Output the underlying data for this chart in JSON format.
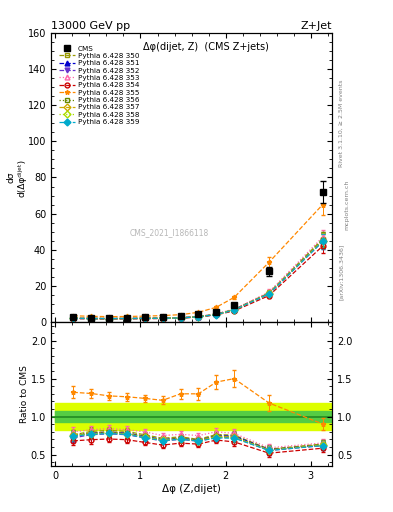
{
  "title_top": "13000 GeV pp",
  "title_right": "Z+Jet",
  "annotation": "Δφ(dijet, Z)  (CMS Z+jets)",
  "watermark": "CMS_2021_I1866118",
  "rivet_text": "Rivet 3.1.10, ≥ 2.5M events",
  "arxiv_text": "[arXiv:1306.3436]",
  "mcplots_text": "mcplots.cern.ch",
  "ylabel_ratio": "Ratio to CMS",
  "xlabel": "Δφ (Z,dijet)",
  "ylim_main": [
    0,
    160
  ],
  "ylim_ratio": [
    0.35,
    2.25
  ],
  "yticks_main": [
    0,
    20,
    40,
    60,
    80,
    100,
    120,
    140,
    160
  ],
  "yticks_ratio": [
    0.5,
    1.0,
    1.5,
    2.0
  ],
  "xlim": [
    -0.05,
    3.25
  ],
  "xticks": [
    0,
    1,
    2,
    3
  ],
  "cms_x": [
    0.21,
    0.42,
    0.63,
    0.84,
    1.05,
    1.26,
    1.47,
    1.68,
    1.89,
    2.1,
    2.51,
    3.14
  ],
  "cms_y": [
    2.5,
    2.3,
    2.2,
    2.3,
    2.5,
    2.8,
    3.0,
    4.0,
    5.5,
    9.0,
    28.0,
    72.0
  ],
  "cms_yerr": [
    0.3,
    0.2,
    0.2,
    0.2,
    0.2,
    0.2,
    0.25,
    0.35,
    0.5,
    0.8,
    2.5,
    6.0
  ],
  "series": [
    {
      "label": "Pythia 6.428 350",
      "color": "#999900",
      "marker": "s",
      "fillstyle": "none",
      "linestyle": "--",
      "x": [
        0.21,
        0.42,
        0.63,
        0.84,
        1.05,
        1.26,
        1.47,
        1.68,
        1.89,
        2.1,
        2.51,
        3.14
      ],
      "y": [
        1.9,
        1.85,
        1.8,
        1.85,
        1.9,
        2.0,
        2.2,
        2.8,
        4.2,
        6.8,
        16.0,
        46.0
      ],
      "yerr": [
        0.15,
        0.12,
        0.1,
        0.1,
        0.1,
        0.1,
        0.12,
        0.15,
        0.25,
        0.5,
        1.5,
        4.0
      ]
    },
    {
      "label": "Pythia 6.428 351",
      "color": "#0000cc",
      "marker": "^",
      "fillstyle": "full",
      "linestyle": "--",
      "x": [
        0.21,
        0.42,
        0.63,
        0.84,
        1.05,
        1.26,
        1.47,
        1.68,
        1.89,
        2.1,
        2.51,
        3.14
      ],
      "y": [
        1.85,
        1.8,
        1.75,
        1.8,
        1.85,
        1.95,
        2.15,
        2.75,
        4.1,
        6.7,
        15.8,
        45.0
      ],
      "yerr": [
        0.15,
        0.12,
        0.1,
        0.1,
        0.1,
        0.1,
        0.12,
        0.15,
        0.25,
        0.5,
        1.5,
        4.0
      ]
    },
    {
      "label": "Pythia 6.428 352",
      "color": "#6633cc",
      "marker": "v",
      "fillstyle": "full",
      "linestyle": "--",
      "x": [
        0.21,
        0.42,
        0.63,
        0.84,
        1.05,
        1.26,
        1.47,
        1.68,
        1.89,
        2.1,
        2.51,
        3.14
      ],
      "y": [
        1.8,
        1.75,
        1.7,
        1.75,
        1.8,
        1.9,
        2.1,
        2.7,
        4.0,
        6.5,
        15.5,
        44.5
      ],
      "yerr": [
        0.15,
        0.12,
        0.1,
        0.1,
        0.1,
        0.1,
        0.12,
        0.15,
        0.25,
        0.5,
        1.5,
        4.0
      ]
    },
    {
      "label": "Pythia 6.428 353",
      "color": "#ff66aa",
      "marker": "^",
      "fillstyle": "none",
      "linestyle": ":",
      "x": [
        0.21,
        0.42,
        0.63,
        0.84,
        1.05,
        1.26,
        1.47,
        1.68,
        1.89,
        2.1,
        2.51,
        3.14
      ],
      "y": [
        2.0,
        1.9,
        1.85,
        1.9,
        2.0,
        2.1,
        2.3,
        3.0,
        4.4,
        7.0,
        16.5,
        47.0
      ],
      "yerr": [
        0.15,
        0.12,
        0.1,
        0.1,
        0.1,
        0.1,
        0.12,
        0.15,
        0.25,
        0.5,
        1.5,
        4.0
      ]
    },
    {
      "label": "Pythia 6.428 354",
      "color": "#cc0000",
      "marker": "o",
      "fillstyle": "none",
      "linestyle": "--",
      "x": [
        0.21,
        0.42,
        0.63,
        0.84,
        1.05,
        1.26,
        1.47,
        1.68,
        1.89,
        2.1,
        2.51,
        3.14
      ],
      "y": [
        1.7,
        1.6,
        1.55,
        1.6,
        1.65,
        1.75,
        1.95,
        2.55,
        3.8,
        6.0,
        14.5,
        42.0
      ],
      "yerr": [
        0.15,
        0.12,
        0.1,
        0.1,
        0.1,
        0.1,
        0.12,
        0.15,
        0.25,
        0.5,
        1.5,
        4.0
      ]
    },
    {
      "label": "Pythia 6.428 355",
      "color": "#ff8800",
      "marker": "*",
      "fillstyle": "full",
      "linestyle": "--",
      "x": [
        0.21,
        0.42,
        0.63,
        0.84,
        1.05,
        1.26,
        1.47,
        1.68,
        1.89,
        2.1,
        2.51,
        3.14
      ],
      "y": [
        3.3,
        3.0,
        2.8,
        2.9,
        3.1,
        3.4,
        3.9,
        5.2,
        8.0,
        13.5,
        33.0,
        65.0
      ],
      "yerr": [
        0.2,
        0.15,
        0.12,
        0.12,
        0.12,
        0.15,
        0.2,
        0.3,
        0.5,
        1.0,
        3.0,
        6.0
      ]
    },
    {
      "label": "Pythia 6.428 356",
      "color": "#668800",
      "marker": "s",
      "fillstyle": "none",
      "linestyle": ":",
      "x": [
        0.21,
        0.42,
        0.63,
        0.84,
        1.05,
        1.26,
        1.47,
        1.68,
        1.89,
        2.1,
        2.51,
        3.14
      ],
      "y": [
        1.9,
        1.8,
        1.75,
        1.8,
        1.85,
        1.95,
        2.15,
        2.75,
        4.1,
        6.6,
        15.8,
        45.5
      ],
      "yerr": [
        0.15,
        0.12,
        0.1,
        0.1,
        0.1,
        0.1,
        0.12,
        0.15,
        0.25,
        0.5,
        1.5,
        4.0
      ]
    },
    {
      "label": "Pythia 6.428 357",
      "color": "#ccaa00",
      "marker": "D",
      "fillstyle": "none",
      "linestyle": "--",
      "x": [
        0.21,
        0.42,
        0.63,
        0.84,
        1.05,
        1.26,
        1.47,
        1.68,
        1.89,
        2.1,
        2.51,
        3.14
      ],
      "y": [
        1.88,
        1.78,
        1.73,
        1.78,
        1.83,
        1.93,
        2.13,
        2.73,
        4.05,
        6.55,
        15.7,
        45.0
      ],
      "yerr": [
        0.15,
        0.12,
        0.1,
        0.1,
        0.1,
        0.1,
        0.12,
        0.15,
        0.25,
        0.5,
        1.5,
        4.0
      ]
    },
    {
      "label": "Pythia 6.428 358",
      "color": "#aadd00",
      "marker": "D",
      "fillstyle": "none",
      "linestyle": ":",
      "x": [
        0.21,
        0.42,
        0.63,
        0.84,
        1.05,
        1.26,
        1.47,
        1.68,
        1.89,
        2.1,
        2.51,
        3.14
      ],
      "y": [
        1.87,
        1.77,
        1.72,
        1.77,
        1.82,
        1.92,
        2.12,
        2.72,
        4.0,
        6.5,
        15.6,
        44.8
      ],
      "yerr": [
        0.15,
        0.12,
        0.1,
        0.1,
        0.1,
        0.1,
        0.12,
        0.15,
        0.25,
        0.5,
        1.5,
        4.0
      ]
    },
    {
      "label": "Pythia 6.428 359",
      "color": "#00aacc",
      "marker": "D",
      "fillstyle": "full",
      "linestyle": "--",
      "x": [
        0.21,
        0.42,
        0.63,
        0.84,
        1.05,
        1.26,
        1.47,
        1.68,
        1.89,
        2.1,
        2.51,
        3.14
      ],
      "y": [
        1.86,
        1.76,
        1.71,
        1.76,
        1.81,
        1.91,
        2.11,
        2.71,
        3.95,
        6.45,
        15.5,
        44.5
      ],
      "yerr": [
        0.15,
        0.12,
        0.1,
        0.1,
        0.1,
        0.1,
        0.12,
        0.15,
        0.25,
        0.5,
        1.5,
        4.0
      ]
    }
  ],
  "ratio_band_color_outer": "#ddff00",
  "ratio_band_color_inner": "#55cc44",
  "ratio_line_color": "#228b22",
  "ratio_band_outer_lo": 0.82,
  "ratio_band_outer_hi": 1.18,
  "ratio_band_inner_lo": 0.93,
  "ratio_band_inner_hi": 1.07
}
